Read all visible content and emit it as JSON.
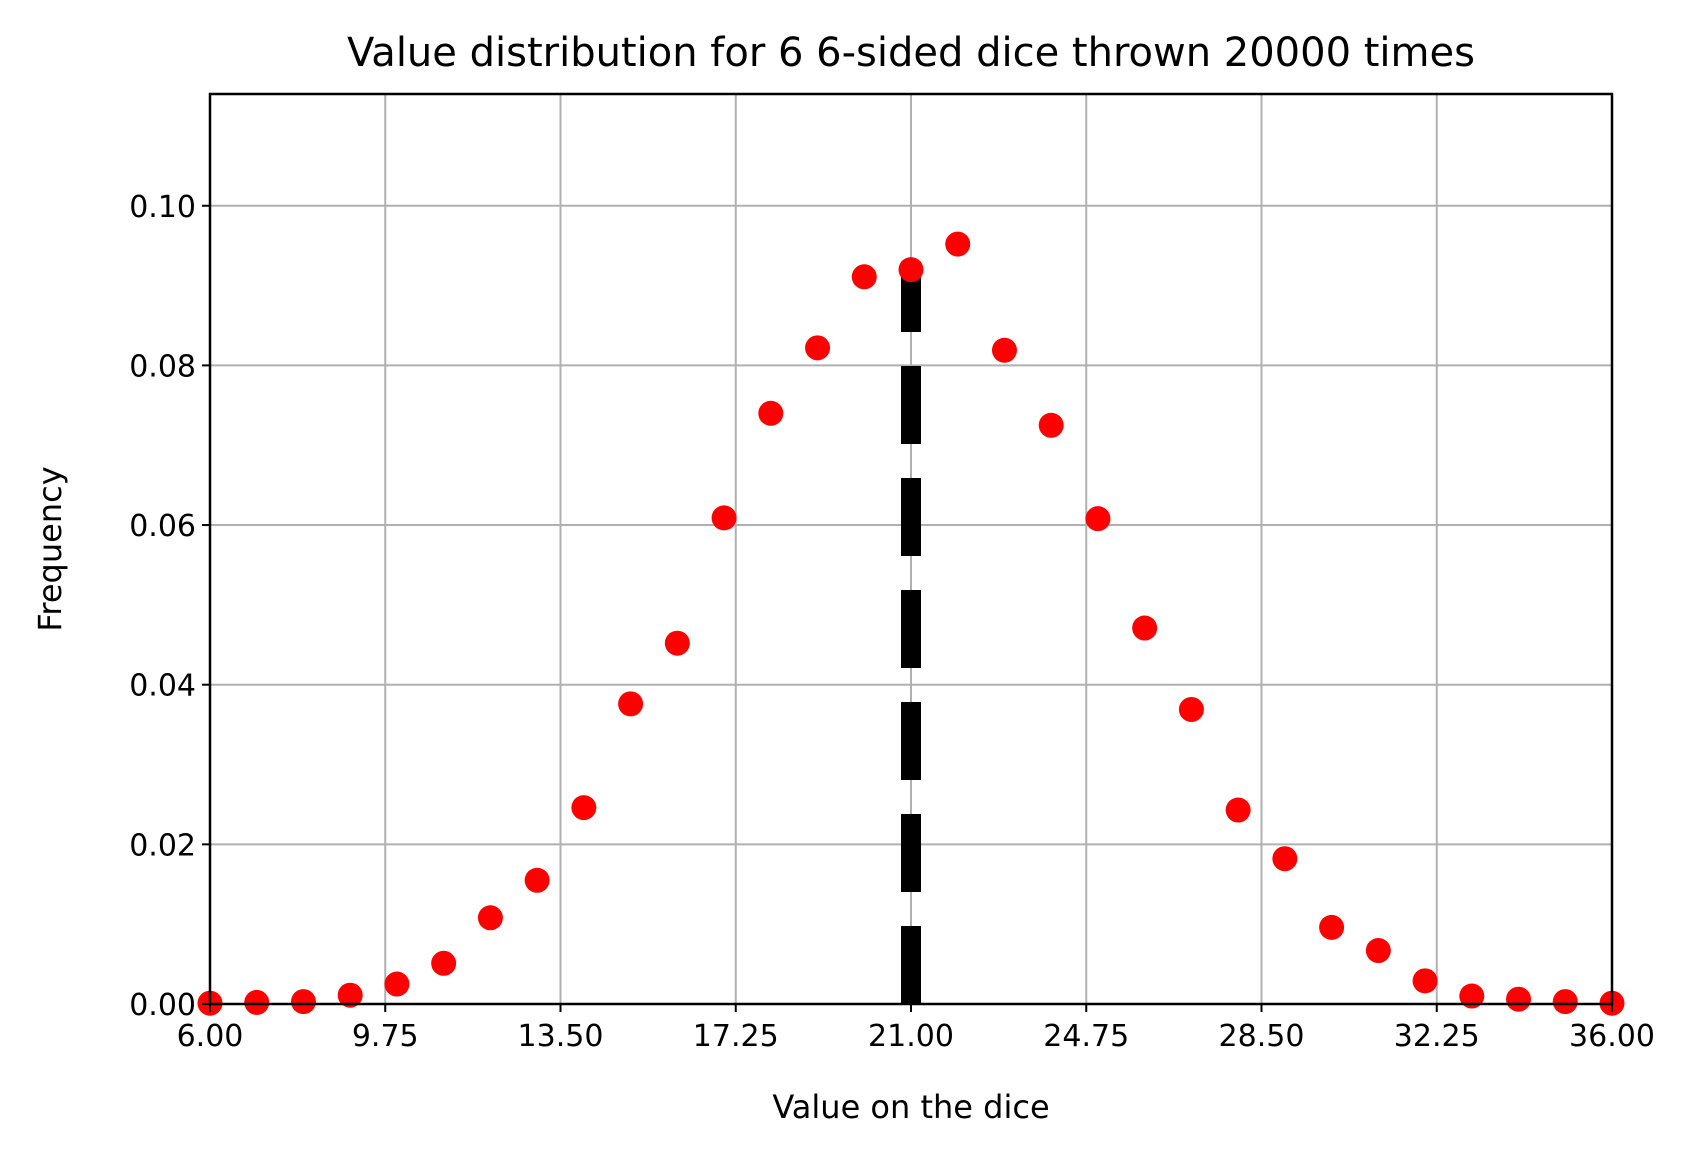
{
  "chart_data": {
    "type": "scatter",
    "title": "Value distribution for 6 6-sided dice thrown 20000 times",
    "xlabel": "Value on the dice",
    "ylabel": "Frequency",
    "xlim": [
      6.0,
      36.0
    ],
    "ylim": [
      0.0,
      0.114
    ],
    "xticks": [
      "6.00",
      "9.75",
      "13.50",
      "17.25",
      "21.00",
      "24.75",
      "28.50",
      "32.25",
      "36.00"
    ],
    "yticks": [
      "0.00",
      "0.02",
      "0.04",
      "0.06",
      "0.08",
      "0.10"
    ],
    "grid": true,
    "series": [
      {
        "marker": "circle",
        "color": "#ff0000",
        "x": [
          6,
          7,
          8,
          9,
          10,
          11,
          12,
          13,
          14,
          15,
          16,
          17,
          18,
          19,
          20,
          21,
          22,
          23,
          24,
          25,
          26,
          27,
          28,
          29,
          30,
          31,
          32,
          33,
          34,
          35,
          36
        ],
        "y": [
          0.0001,
          0.0002,
          0.0003,
          0.0011,
          0.0025,
          0.0051,
          0.0108,
          0.0155,
          0.0246,
          0.0376,
          0.0452,
          0.0609,
          0.074,
          0.0822,
          0.0911,
          0.092,
          0.0952,
          0.0819,
          0.0725,
          0.0608,
          0.0471,
          0.0369,
          0.0243,
          0.0182,
          0.0096,
          0.0067,
          0.0029,
          0.001,
          0.0006,
          0.0003,
          0.0001
        ]
      }
    ],
    "reference_line": {
      "x": 21.0,
      "y_range": [
        0.0,
        0.093
      ],
      "style": "dashed",
      "color": "#000000"
    }
  }
}
